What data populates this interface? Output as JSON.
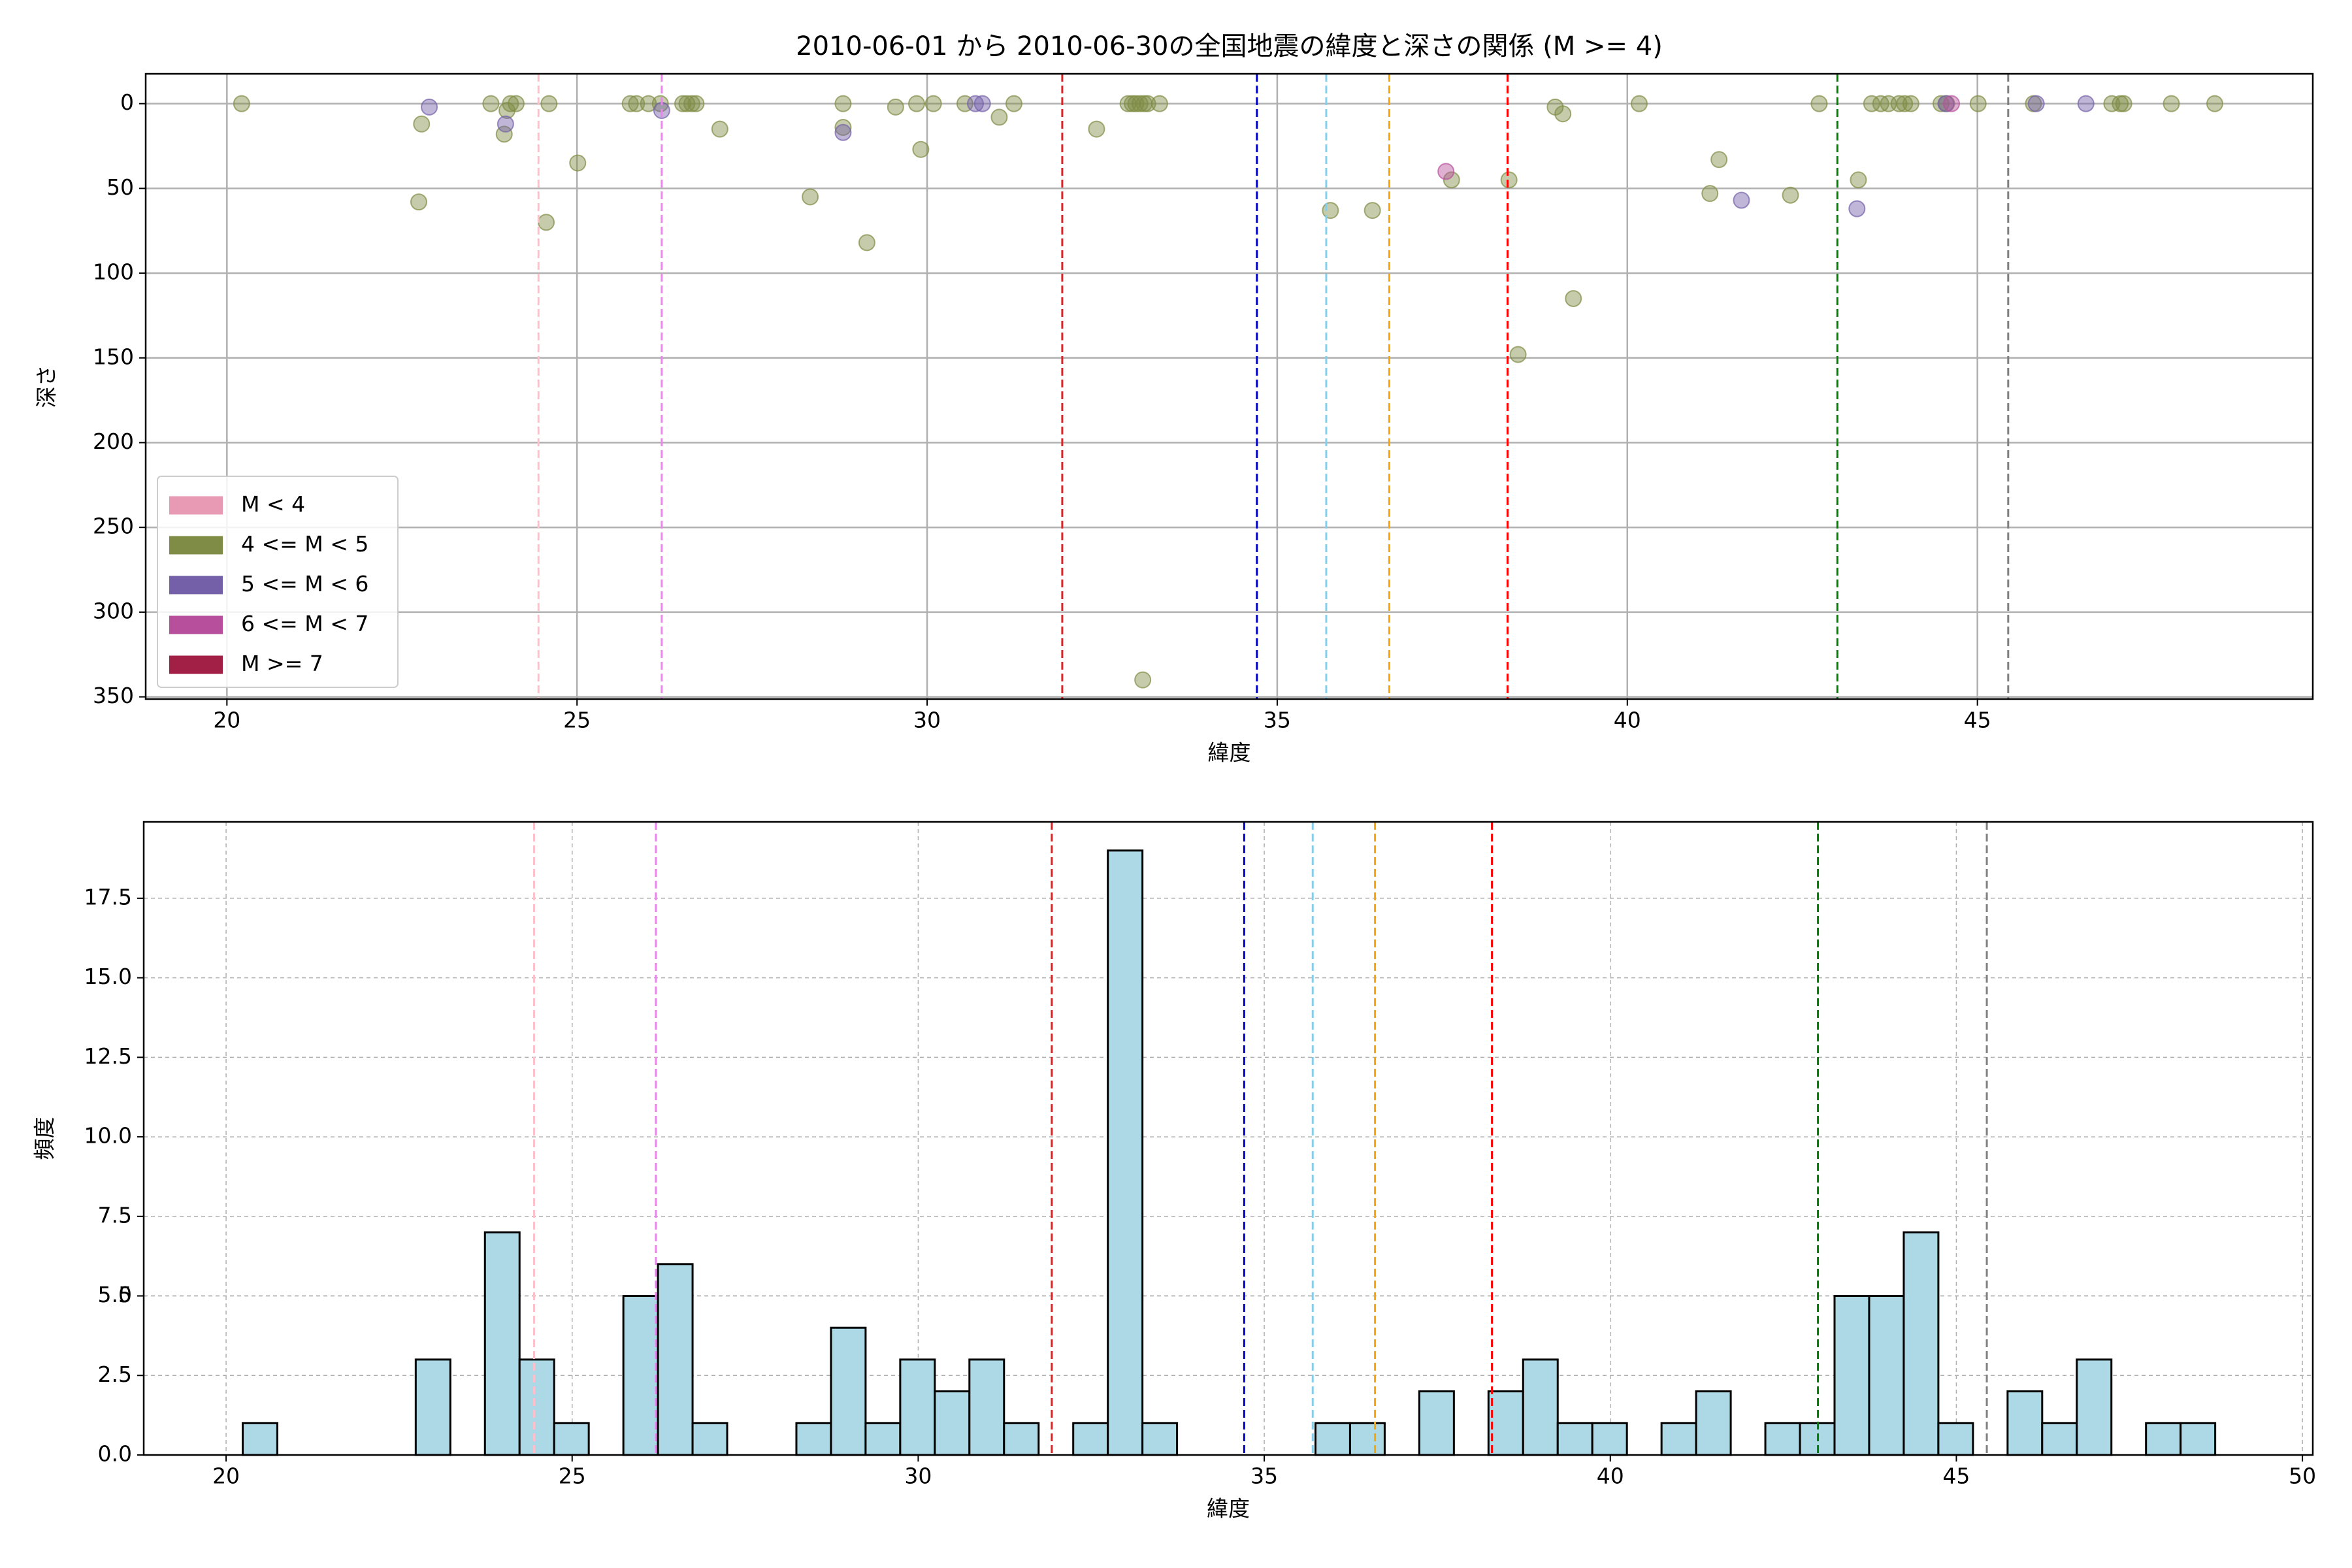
{
  "chart_data": [
    {
      "type": "scatter",
      "title": "2010-06-01 から 2010-06-30の全国地震の緯度と深さの関係 (M >= 4)",
      "x_label": "緯度",
      "y_label": "深さ",
      "xlim": [
        18.84,
        49.79
      ],
      "ylim": [
        -17.6,
        351.3
      ],
      "y_inverted": true,
      "xticks": [
        20,
        25,
        30,
        35,
        40,
        45
      ],
      "yticks": [
        0,
        50,
        100,
        150,
        200,
        250,
        300,
        350
      ],
      "grid": true,
      "grid_style": "solid",
      "legend": "lower left",
      "series": [
        {
          "name": "M < 4",
          "color": "#e899b4",
          "x": [],
          "y": []
        },
        {
          "name": "4 <= M < 5",
          "color": "#7f8c45",
          "x": [
            20.21,
            22.78,
            22.74,
            23.77,
            23.96,
            24.05,
            24.13,
            24.0,
            24.6,
            24.56,
            25.01,
            25.76,
            25.85,
            26.02,
            26.19,
            26.51,
            26.57,
            26.64,
            26.7,
            27.04,
            28.33,
            28.8,
            28.8,
            29.14,
            29.55,
            29.85,
            30.09,
            29.91,
            30.54,
            31.03,
            31.24,
            32.42,
            32.87,
            32.93,
            32.98,
            33.04,
            33.1,
            33.15,
            33.32,
            33.08,
            35.76,
            36.36,
            37.49,
            38.31,
            38.44,
            38.97,
            39.08,
            39.23,
            40.17,
            41.18,
            41.31,
            42.33,
            42.74,
            43.3,
            43.49,
            43.62,
            43.73,
            43.88,
            43.96,
            44.05,
            44.48,
            44.56,
            45.01,
            45.8,
            46.92,
            47.04,
            47.09,
            47.77,
            48.39
          ],
          "y": [
            0,
            12,
            58,
            0,
            18,
            0,
            0,
            4,
            0,
            70,
            35,
            0,
            0,
            0,
            0,
            0,
            0,
            0,
            0,
            15,
            55,
            0,
            14,
            82,
            2,
            0,
            0,
            27,
            0,
            8,
            0,
            15,
            0,
            0,
            0,
            0,
            0,
            0,
            0,
            340,
            63,
            63,
            45,
            45,
            148,
            2,
            6,
            115,
            0,
            53,
            33,
            54,
            0,
            45,
            0,
            0,
            0,
            0,
            0,
            0,
            0,
            0,
            0,
            0,
            0,
            0,
            0,
            0,
            0
          ]
        },
        {
          "name": "5 <= M < 6",
          "color": "#7460a8",
          "x": [
            22.89,
            23.98,
            26.21,
            28.8,
            30.69,
            30.79,
            41.63,
            43.28,
            44.55,
            45.84,
            46.55
          ],
          "y": [
            2,
            12,
            4,
            17,
            0,
            0,
            57,
            62,
            0,
            0,
            0
          ]
        },
        {
          "name": "6 <= M < 7",
          "color": "#b84f9c",
          "x": [
            37.41,
            44.63
          ],
          "y": [
            40,
            0
          ]
        },
        {
          "name": "M >= 7",
          "color": "#a21f45",
          "x": [],
          "y": []
        }
      ],
      "vlines": [
        {
          "x": 24.45,
          "color": "pink"
        },
        {
          "x": 26.21,
          "color": "violet"
        },
        {
          "x": 31.93,
          "color": "#d62728"
        },
        {
          "x": 34.71,
          "color": "#0000cc"
        },
        {
          "x": 35.7,
          "color": "skyblue"
        },
        {
          "x": 36.6,
          "color": "orange"
        },
        {
          "x": 38.29,
          "color": "red"
        },
        {
          "x": 43.0,
          "color": "green"
        },
        {
          "x": 45.44,
          "color": "gray"
        }
      ]
    },
    {
      "type": "histogram",
      "x_label": "緯度",
      "y_label": "頻度",
      "xlim": [
        18.81,
        50.15
      ],
      "ylim": [
        0,
        19.9
      ],
      "xticks": [
        20,
        25,
        30,
        35,
        40,
        45,
        50
      ],
      "yticks": [
        {
          "value": 0,
          "label": "0.0"
        },
        2.5,
        5,
        {
          "value": 5,
          "label": "5.0"
        },
        7.5,
        {
          "value": 10,
          "label": "10.0"
        },
        12.5,
        {
          "value": 15,
          "label": "15.0"
        },
        17.5
      ],
      "grid": true,
      "grid_style": "dashed",
      "color": "lightblue",
      "bins": [
        20.24,
        20.74,
        21.24,
        21.74,
        22.24,
        22.74,
        23.24,
        23.74,
        24.24,
        24.74,
        25.24,
        25.74,
        26.24,
        26.74,
        27.24,
        27.74,
        28.24,
        28.74,
        29.24,
        29.74,
        30.24,
        30.74,
        31.24,
        31.74,
        32.24,
        32.74,
        33.24,
        33.74,
        34.24,
        34.74,
        35.24,
        35.74,
        36.24,
        36.74,
        37.24,
        37.74,
        38.24,
        38.74,
        39.24,
        39.74,
        40.24,
        40.74,
        41.24,
        41.74,
        42.24,
        42.74,
        43.24,
        43.74,
        44.24,
        44.74,
        45.24,
        45.74,
        46.24,
        46.74,
        47.24,
        47.74,
        48.24,
        48.74
      ],
      "counts": [
        1,
        0,
        0,
        0,
        0,
        3,
        0,
        7,
        3,
        1,
        0,
        5,
        6,
        1,
        0,
        0,
        1,
        4,
        1,
        3,
        2,
        3,
        1,
        0,
        1,
        19,
        1,
        0,
        0,
        0,
        0,
        1,
        1,
        0,
        2,
        0,
        2,
        3,
        1,
        1,
        0,
        1,
        2,
        0,
        1,
        1,
        5,
        5,
        7,
        1,
        0,
        2,
        1,
        3,
        0,
        1,
        1
      ],
      "vlines": [
        {
          "x": 24.45,
          "color": "pink"
        },
        {
          "x": 26.21,
          "color": "violet"
        },
        {
          "x": 31.93,
          "color": "#d62728"
        },
        {
          "x": 34.71,
          "color": "#0000cc"
        },
        {
          "x": 35.7,
          "color": "skyblue"
        },
        {
          "x": 36.6,
          "color": "orange"
        },
        {
          "x": 38.29,
          "color": "red"
        },
        {
          "x": 43.0,
          "color": "green"
        },
        {
          "x": 45.44,
          "color": "gray"
        }
      ]
    }
  ]
}
